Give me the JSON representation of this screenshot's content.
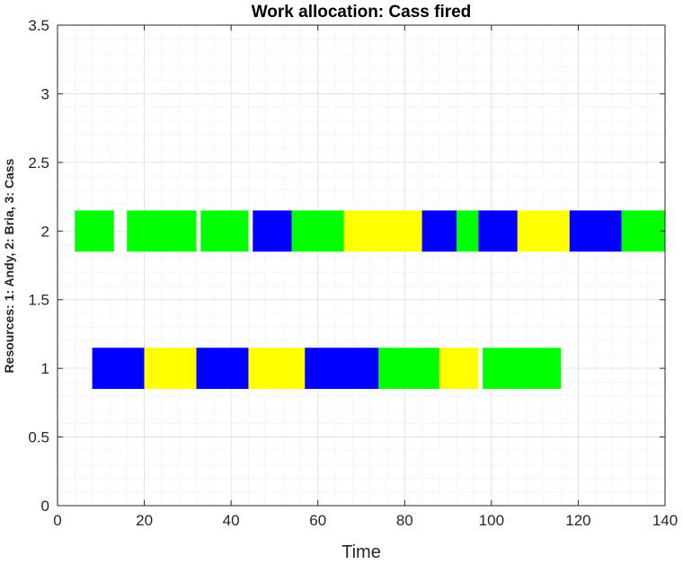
{
  "chart_data": {
    "type": "gantt",
    "title": "Work allocation: Cass fired",
    "xlabel": "Time",
    "ylabel": "Resources:    1: Andy,    2: Bria,    3: Cass",
    "xlim": [
      0,
      140
    ],
    "ylim": [
      0,
      3.5
    ],
    "xticks": [
      "0",
      "20",
      "40",
      "60",
      "80",
      "100",
      "120",
      "140"
    ],
    "yticks": [
      "0",
      "0.5",
      "1",
      "1.5",
      "2",
      "2.5",
      "3",
      "3.5"
    ],
    "grid": true,
    "minor_grid": true,
    "bar_height": 0.3,
    "colors": {
      "green": "#00ff00",
      "blue": "#0000ff",
      "yellow": "#ffff00"
    },
    "tasks": [
      {
        "resource": 2,
        "start": 4,
        "end": 13,
        "color": "green"
      },
      {
        "resource": 2,
        "start": 16,
        "end": 32,
        "color": "green"
      },
      {
        "resource": 2,
        "start": 33,
        "end": 44,
        "color": "green"
      },
      {
        "resource": 2,
        "start": 45,
        "end": 54,
        "color": "blue"
      },
      {
        "resource": 2,
        "start": 54,
        "end": 66,
        "color": "green"
      },
      {
        "resource": 2,
        "start": 66,
        "end": 84,
        "color": "yellow"
      },
      {
        "resource": 2,
        "start": 84,
        "end": 92,
        "color": "blue"
      },
      {
        "resource": 2,
        "start": 92,
        "end": 97,
        "color": "green"
      },
      {
        "resource": 2,
        "start": 97,
        "end": 106,
        "color": "blue"
      },
      {
        "resource": 2,
        "start": 106,
        "end": 118,
        "color": "yellow"
      },
      {
        "resource": 2,
        "start": 118,
        "end": 130,
        "color": "blue"
      },
      {
        "resource": 2,
        "start": 130,
        "end": 140,
        "color": "green"
      },
      {
        "resource": 1,
        "start": 8,
        "end": 20,
        "color": "blue"
      },
      {
        "resource": 1,
        "start": 20,
        "end": 32,
        "color": "yellow"
      },
      {
        "resource": 1,
        "start": 32,
        "end": 44,
        "color": "blue"
      },
      {
        "resource": 1,
        "start": 44,
        "end": 57,
        "color": "yellow"
      },
      {
        "resource": 1,
        "start": 57,
        "end": 74,
        "color": "blue"
      },
      {
        "resource": 1,
        "start": 74,
        "end": 88,
        "color": "green"
      },
      {
        "resource": 1,
        "start": 88,
        "end": 97,
        "color": "yellow"
      },
      {
        "resource": 1,
        "start": 98,
        "end": 116,
        "color": "green"
      }
    ]
  }
}
